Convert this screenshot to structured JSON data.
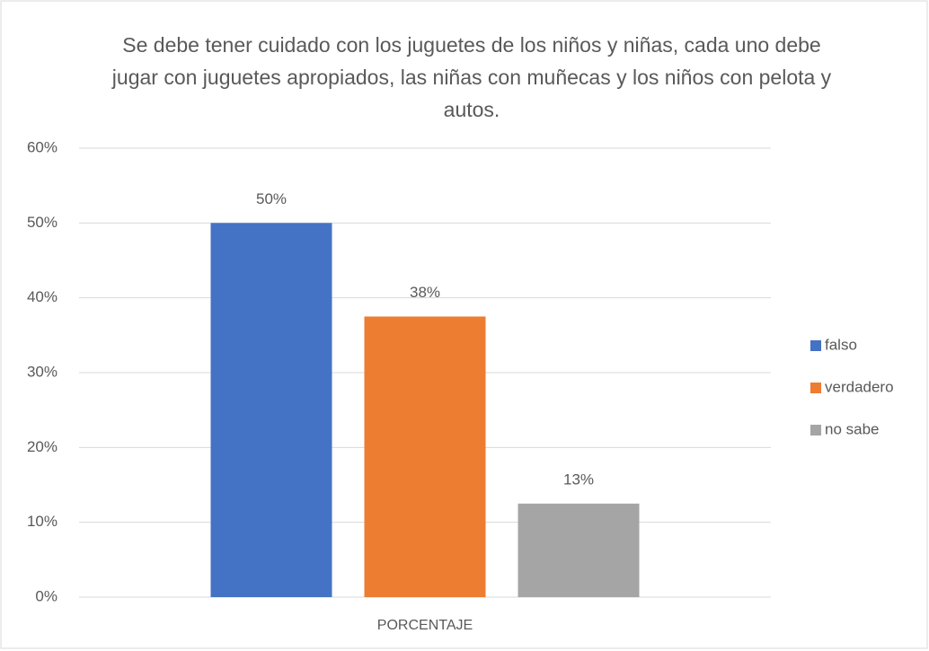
{
  "chart_data": {
    "type": "bar",
    "title": "Se debe tener cuidado con los juguetes de los niños y niñas, cada uno debe jugar con juguetes apropiados, las niñas con muñecas y los niños con pelota y autos.",
    "categories": [
      "PORCENTAJE"
    ],
    "series": [
      {
        "name": "falso",
        "color": "#4472c4",
        "values": [
          50
        ],
        "value_labels": [
          "50%"
        ]
      },
      {
        "name": "verdadero",
        "color": "#ed7d31",
        "values": [
          37.5
        ],
        "value_labels": [
          "38%"
        ]
      },
      {
        "name": "no sabe",
        "color": "#a5a5a5",
        "values": [
          12.5
        ],
        "value_labels": [
          "13%"
        ]
      }
    ],
    "ylim": [
      0,
      60
    ],
    "yticks": [
      {
        "value": 0,
        "label": "0%"
      },
      {
        "value": 10,
        "label": "10%"
      },
      {
        "value": 20,
        "label": "20%"
      },
      {
        "value": 30,
        "label": "30%"
      },
      {
        "value": 40,
        "label": "40%"
      },
      {
        "value": 50,
        "label": "50%"
      },
      {
        "value": 60,
        "label": "60%"
      }
    ],
    "grid": true,
    "legend": "right"
  }
}
